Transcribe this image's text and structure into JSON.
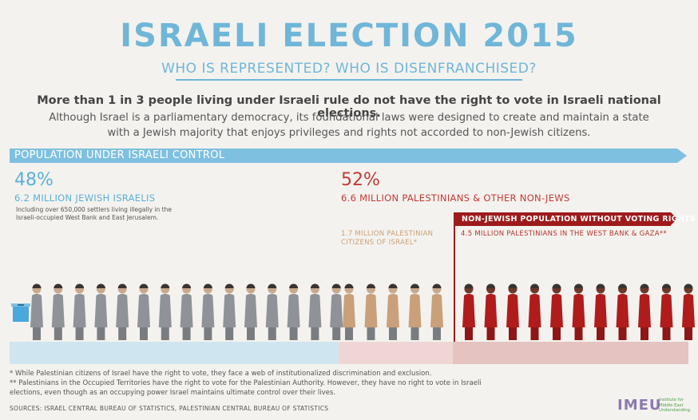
{
  "title": "ISRAELI ELECTION 2015",
  "subtitle": "WHO IS REPRESENTED? WHO IS DISENFRANCHISED?",
  "lead": "More than 1 in 3 people living under Israeli rule do not have the right to vote in Israeli national elections.",
  "body": "Although Israel is a parliamentary democracy, its foundational laws were designed to create and maintain a state with a Jewish majority that enjoys privileges and rights not accorded to non-Jewish citizens.",
  "banner": "POPULATION UNDER ISRAELI CONTROL",
  "jewish": {
    "percent": "48%",
    "label": "6.2 MILLION JEWISH ISRAELIS",
    "note": "Including over 650,000 settlers living illegally in the Israeli-occupied West Bank and East Jerusalem."
  },
  "nonjewish": {
    "percent": "52%",
    "label": "6.6 MILLION PALESTINIANS & OTHER NON-JEWS"
  },
  "no_vote_banner": "NON-JEWISH POPULATION WITHOUT VOTING RIGHTS",
  "west_bank_gaza": "4.5 MILLION PALESTINIANS IN THE WEST BANK & GAZA**",
  "citizens": "1.7 MILLION PALESTINIAN CITIZENS OF ISRAEL*",
  "footnote1": "* While Palestinian citizens of Israel have the right to vote, they face a web of institutionalized discrimination and exclusion.",
  "footnote2": "** Palestinians in the Occupied Territories have the right to vote for the Palestinian Authority. However, they have no right to vote in Israeli elections, even though as an occupying power Israel maintains ultimate control over their lives.",
  "sources": "SOURCES: ISRAEL CENTRAL BUREAU OF STATISTICS, PALESTINIAN CENTRAL BUREAU OF STATISTICS",
  "logo": {
    "name": "IMEU",
    "tagline": "Institute for Middle East Understanding"
  },
  "colors": {
    "blue": "#6fb6d9",
    "red": "#9e1b1b",
    "jewish_figure": "#8f9296",
    "citizen_figure": "#c9a079",
    "occupied_figure": "#b01c1c"
  },
  "people": {
    "jewish_count": 15,
    "citizen_count": 5,
    "occupied_count": 11
  }
}
